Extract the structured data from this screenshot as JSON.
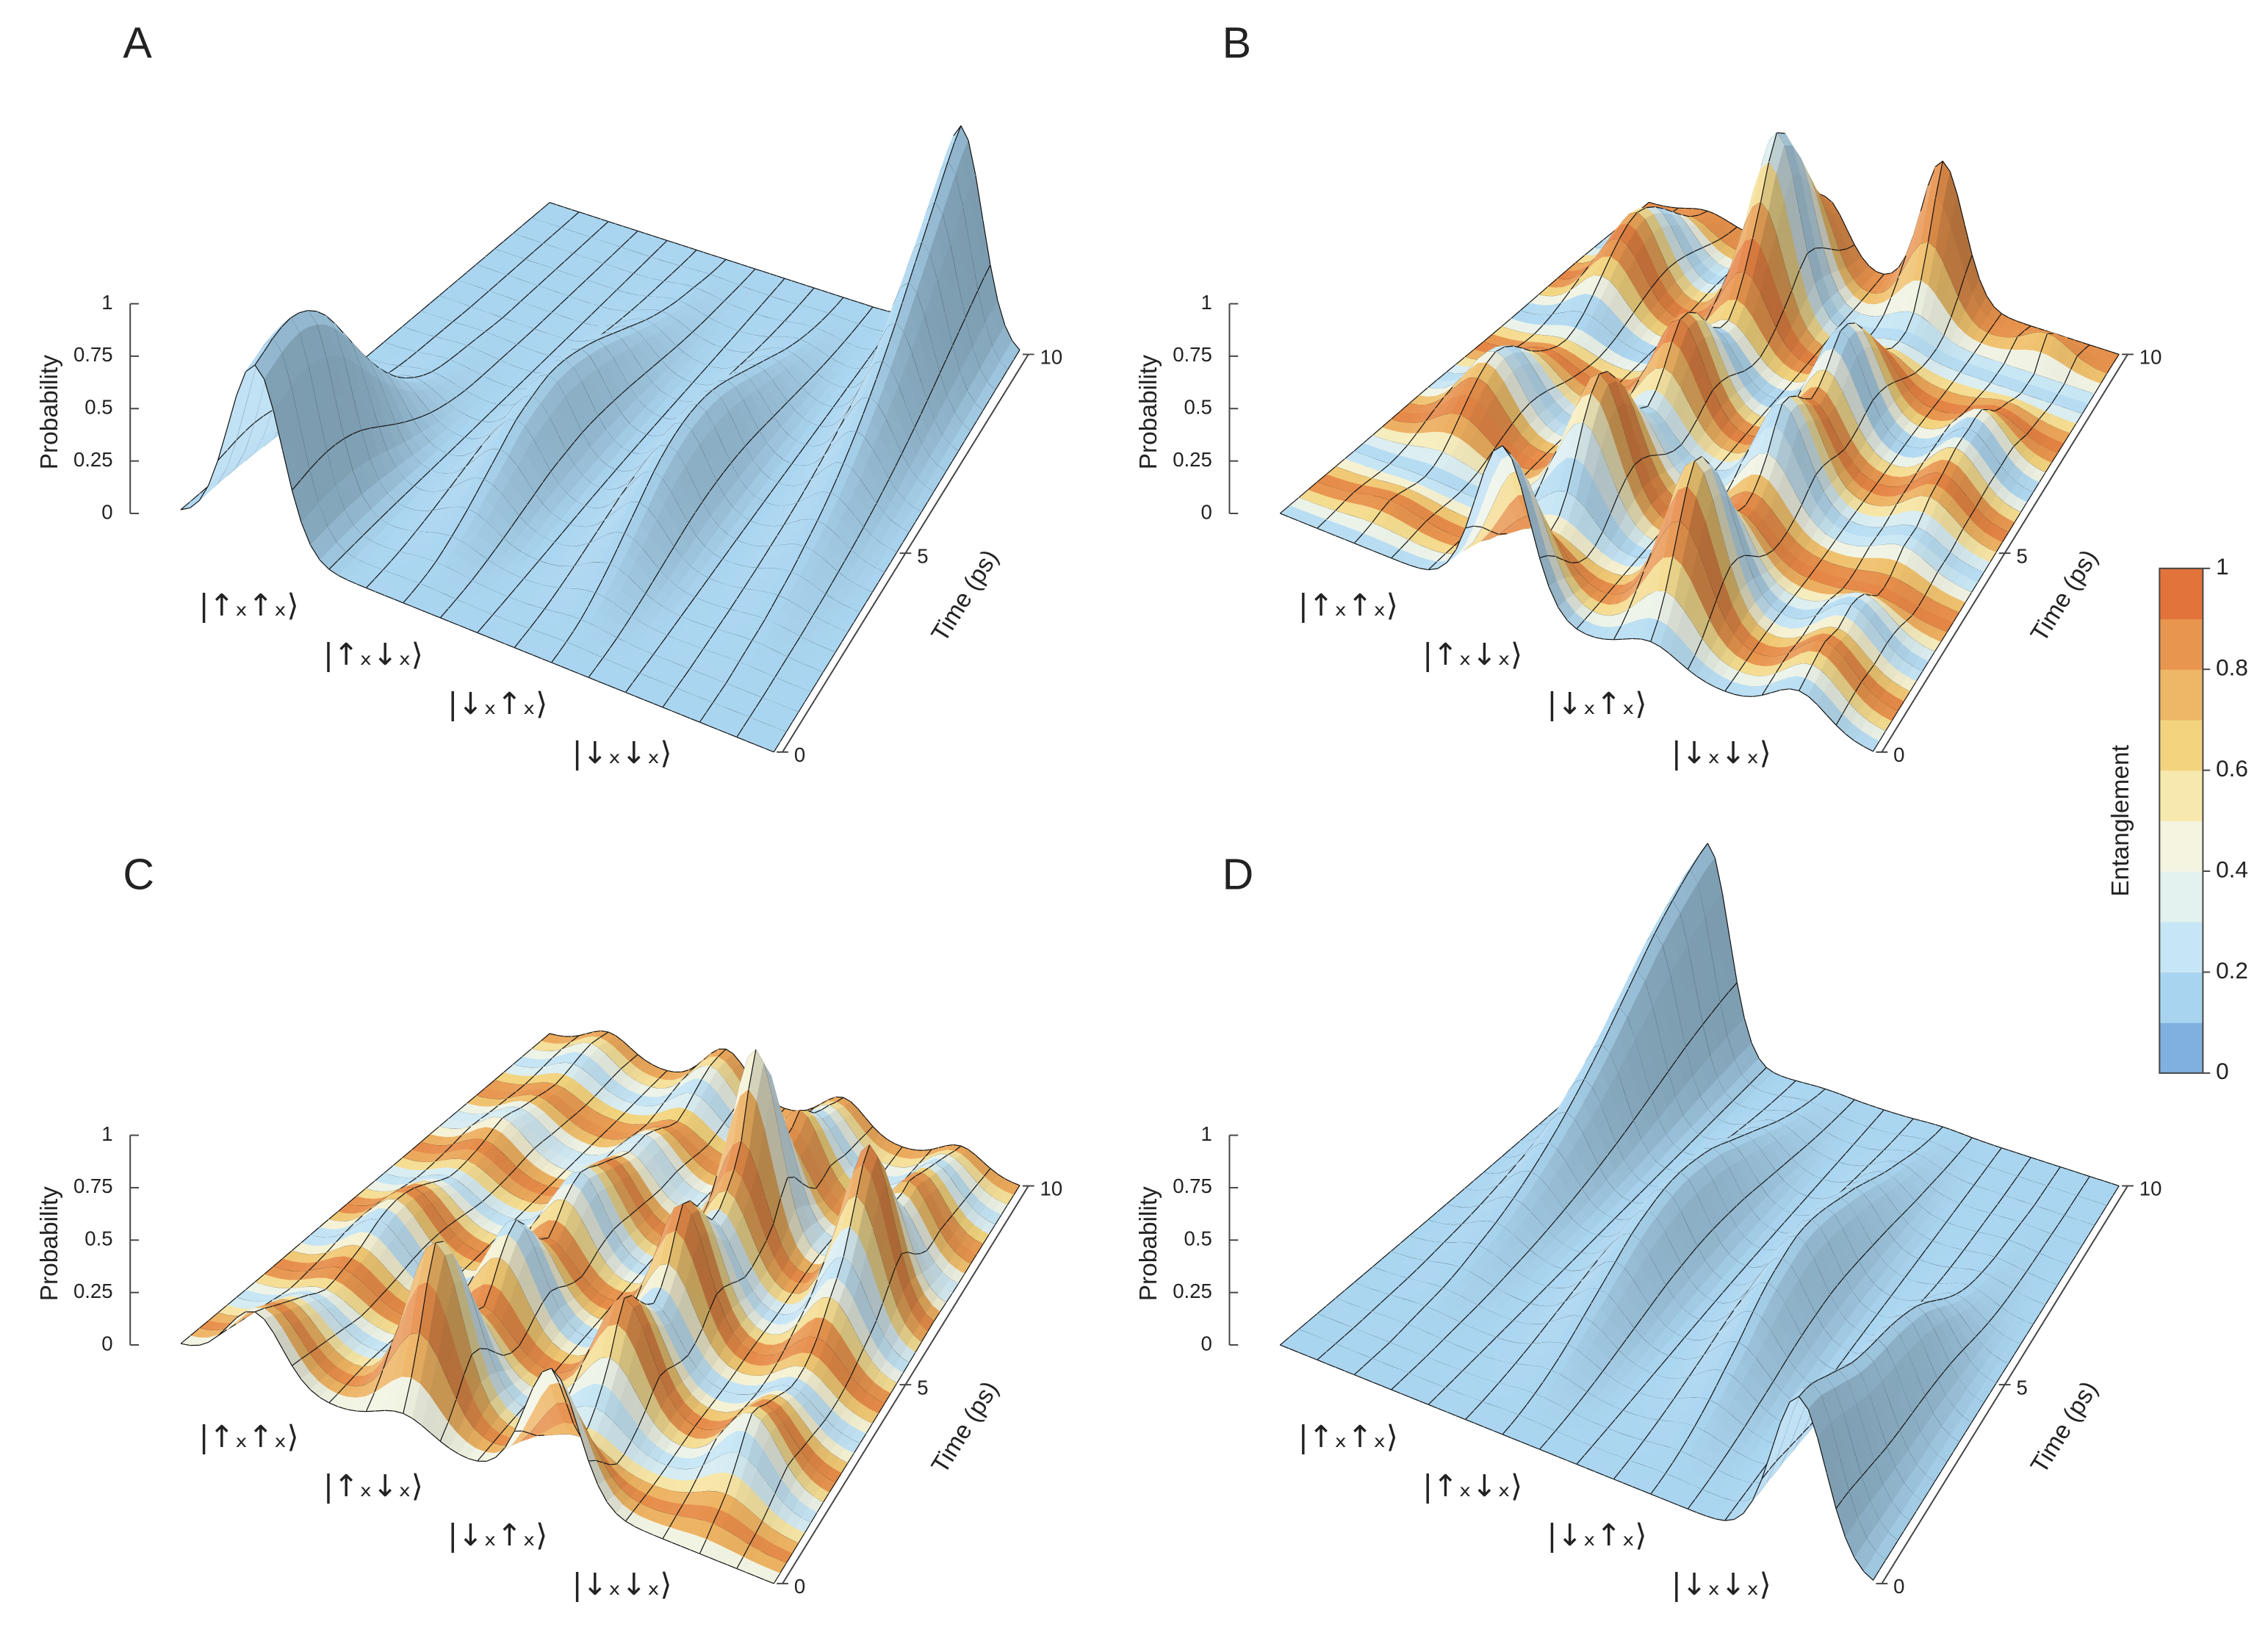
{
  "chart_data": [
    {
      "type": "surface3d",
      "panel": "A",
      "zlabel": "Probability",
      "ylabel": "Time (ps)",
      "categories": [
        "|↑ₓ↑ₓ⟩",
        "|↑ₓ↓ₓ⟩",
        "|↓ₓ↑ₓ⟩",
        "|↓ₓ↓ₓ⟩"
      ],
      "x": [
        0,
        0.5,
        1,
        1.5,
        2,
        2.5,
        3,
        3.5,
        4,
        4.5,
        5,
        5.5,
        6,
        6.5,
        7,
        7.5,
        8,
        8.5,
        9,
        9.5,
        10
      ],
      "z": [
        [
          0.85,
          0.9,
          0.92,
          0.88,
          0.78,
          0.62,
          0.45,
          0.3,
          0.18,
          0.1,
          0.05,
          0.03,
          0.02,
          0.01,
          0,
          0,
          0,
          0,
          0,
          0,
          0
        ],
        [
          0,
          0.01,
          0.03,
          0.07,
          0.12,
          0.18,
          0.24,
          0.3,
          0.33,
          0.35,
          0.34,
          0.31,
          0.27,
          0.22,
          0.17,
          0.12,
          0.08,
          0.05,
          0.03,
          0.01,
          0
        ],
        [
          0,
          0.01,
          0.03,
          0.07,
          0.12,
          0.18,
          0.24,
          0.3,
          0.34,
          0.36,
          0.36,
          0.34,
          0.3,
          0.25,
          0.2,
          0.15,
          0.1,
          0.06,
          0.03,
          0.01,
          0
        ],
        [
          0,
          0,
          0,
          0.01,
          0.02,
          0.03,
          0.05,
          0.07,
          0.1,
          0.13,
          0.17,
          0.22,
          0.28,
          0.35,
          0.43,
          0.52,
          0.62,
          0.72,
          0.82,
          0.92,
          1.0
        ]
      ],
      "entanglement": [
        0.12,
        0.12,
        0.12,
        0.12,
        0.12,
        0.12,
        0.12,
        0.12,
        0.12,
        0.12,
        0.12,
        0.12,
        0.12,
        0.12,
        0.12,
        0.12,
        0.12,
        0.12,
        0.12,
        0.12,
        0.12
      ],
      "zlim": [
        0,
        1
      ],
      "zticks": [
        0,
        0.25,
        0.5,
        0.75,
        1
      ],
      "ylim": [
        0,
        10
      ],
      "yticks": [
        0,
        5,
        10
      ]
    },
    {
      "type": "surface3d",
      "panel": "B",
      "zlabel": "Probability",
      "ylabel": "Time (ps)",
      "categories": [
        "|↑ₓ↑ₓ⟩",
        "|↑ₓ↓ₓ⟩",
        "|↓ₓ↑ₓ⟩",
        "|↓ₓ↓ₓ⟩"
      ],
      "x": [
        0,
        0.5,
        1,
        1.5,
        2,
        2.5,
        3,
        3.5,
        4,
        4.5,
        5,
        5.5,
        6,
        6.5,
        7,
        7.5,
        8,
        8.5,
        9,
        9.5,
        10
      ],
      "z": [
        [
          0,
          0.02,
          0.05,
          0.03,
          0.01,
          0.05,
          0.15,
          0.25,
          0.3,
          0.25,
          0.15,
          0.08,
          0.05,
          0.1,
          0.2,
          0.3,
          0.35,
          0.3,
          0.2,
          0.1,
          0.05
        ],
        [
          0.75,
          0.55,
          0.25,
          0.1,
          0.2,
          0.45,
          0.6,
          0.5,
          0.3,
          0.2,
          0.3,
          0.45,
          0.4,
          0.25,
          0.2,
          0.35,
          0.6,
          0.85,
          0.7,
          0.45,
          0.3
        ],
        [
          0.1,
          0.25,
          0.5,
          0.7,
          0.6,
          0.35,
          0.2,
          0.2,
          0.3,
          0.45,
          0.4,
          0.3,
          0.35,
          0.45,
          0.4,
          0.25,
          0.1,
          0.05,
          0.1,
          0.35,
          0.65
        ],
        [
          0.15,
          0.18,
          0.2,
          0.17,
          0.19,
          0.15,
          0.05,
          0.05,
          0.1,
          0.1,
          0.15,
          0.17,
          0.2,
          0.2,
          0.2,
          0.1,
          0.05,
          0,
          0,
          0.1,
          0
        ]
      ],
      "entanglement": [
        0.1,
        0.5,
        0.95,
        0.6,
        0.15,
        0.4,
        0.9,
        0.85,
        0.3,
        0.2,
        0.7,
        0.95,
        0.5,
        0.1,
        0.55,
        0.95,
        0.75,
        0.2,
        0.3,
        0.85,
        0.9
      ],
      "zlim": [
        0,
        1
      ],
      "zticks": [
        0,
        0.25,
        0.5,
        0.75,
        1
      ],
      "ylim": [
        0,
        10
      ],
      "yticks": [
        0,
        5,
        10
      ]
    },
    {
      "type": "surface3d",
      "panel": "C",
      "zlabel": "Probability",
      "ylabel": "Time (ps)",
      "categories": [
        "|↑ₓ↑ₓ⟩",
        "|↑ₓ↓ₓ⟩",
        "|↓ₓ↑ₓ⟩",
        "|↓ₓ↓ₓ⟩"
      ],
      "x": [
        0,
        0.5,
        1,
        1.5,
        2,
        2.5,
        3,
        3.5,
        4,
        4.5,
        5,
        5.5,
        6,
        6.5,
        7,
        7.5,
        8,
        8.5,
        9,
        9.5,
        10
      ],
      "z": [
        [
          0.3,
          0.25,
          0.2,
          0.15,
          0.1,
          0.12,
          0.15,
          0.2,
          0.22,
          0.2,
          0.15,
          0.1,
          0.1,
          0.12,
          0.15,
          0.12,
          0.1,
          0.08,
          0.1,
          0.12,
          0.1
        ],
        [
          0.1,
          0.4,
          0.75,
          0.6,
          0.3,
          0.2,
          0.35,
          0.45,
          0.3,
          0.2,
          0.3,
          0.35,
          0.3,
          0.25,
          0.2,
          0.2,
          0.15,
          0.1,
          0.15,
          0.2,
          0.2
        ],
        [
          0.6,
          0.35,
          0.1,
          0.15,
          0.3,
          0.5,
          0.4,
          0.3,
          0.4,
          0.6,
          0.5,
          0.35,
          0.4,
          0.55,
          0.9,
          0.6,
          0.3,
          0.35,
          0.25,
          0.2,
          0.15
        ],
        [
          0,
          0.05,
          0.1,
          0.2,
          0.3,
          0.25,
          0.2,
          0.15,
          0.15,
          0.2,
          0.3,
          0.4,
          0.6,
          0.75,
          0.5,
          0.3,
          0.3,
          0.25,
          0.2,
          0.15,
          0.1
        ]
      ],
      "entanglement": [
        0.3,
        0.9,
        0.7,
        0.2,
        0.5,
        0.95,
        0.6,
        0.15,
        0.6,
        0.95,
        0.5,
        0.2,
        0.75,
        0.9,
        0.35,
        0.3,
        0.85,
        0.8,
        0.2,
        0.5,
        0.9
      ],
      "zlim": [
        0,
        1
      ],
      "zticks": [
        0,
        0.25,
        0.5,
        0.75,
        1
      ],
      "ylim": [
        0,
        10
      ],
      "yticks": [
        0,
        5,
        10
      ]
    },
    {
      "type": "surface3d",
      "panel": "D",
      "zlabel": "Probability",
      "ylabel": "Time (ps)",
      "categories": [
        "|↑ₓ↑ₓ⟩",
        "|↑ₓ↓ₓ⟩",
        "|↓ₓ↑ₓ⟩",
        "|↓ₓ↓ₓ⟩"
      ],
      "x": [
        0,
        0.5,
        1,
        1.5,
        2,
        2.5,
        3,
        3.5,
        4,
        4.5,
        5,
        5.5,
        6,
        6.5,
        7,
        7.5,
        8,
        8.5,
        9,
        9.5,
        10
      ],
      "z": [
        [
          0,
          0,
          0,
          0.01,
          0.02,
          0.03,
          0.05,
          0.08,
          0.11,
          0.15,
          0.2,
          0.26,
          0.33,
          0.41,
          0.5,
          0.6,
          0.7,
          0.8,
          0.88,
          0.95,
          1.0
        ],
        [
          0,
          0.01,
          0.03,
          0.06,
          0.1,
          0.15,
          0.2,
          0.25,
          0.3,
          0.33,
          0.35,
          0.35,
          0.33,
          0.3,
          0.25,
          0.2,
          0.15,
          0.1,
          0.06,
          0.03,
          0.01
        ],
        [
          0,
          0.01,
          0.03,
          0.06,
          0.1,
          0.15,
          0.2,
          0.26,
          0.31,
          0.34,
          0.36,
          0.35,
          0.32,
          0.28,
          0.24,
          0.19,
          0.14,
          0.1,
          0.06,
          0.03,
          0.01
        ],
        [
          0.75,
          0.72,
          0.66,
          0.6,
          0.54,
          0.5,
          0.47,
          0.44,
          0.4,
          0.35,
          0.28,
          0.2,
          0.13,
          0.08,
          0.05,
          0.03,
          0.02,
          0.01,
          0,
          0,
          0
        ]
      ],
      "entanglement": [
        0.12,
        0.12,
        0.12,
        0.12,
        0.12,
        0.12,
        0.12,
        0.12,
        0.12,
        0.12,
        0.12,
        0.12,
        0.12,
        0.12,
        0.12,
        0.12,
        0.12,
        0.12,
        0.12,
        0.12,
        0.12
      ],
      "zlim": [
        0,
        1
      ],
      "zticks": [
        0,
        0.25,
        0.5,
        0.75,
        1
      ],
      "ylim": [
        0,
        10
      ],
      "yticks": [
        0,
        5,
        10
      ]
    }
  ],
  "colorbar": {
    "label": "Entanglement",
    "lim": [
      0,
      1
    ],
    "ticks": [
      0,
      0.2,
      0.4,
      0.6,
      0.8,
      1
    ],
    "colors": [
      "#7fb0de",
      "#a8d4f0",
      "#c7e6f5",
      "#e3f1ef",
      "#f4f4e0",
      "#f7e9ae",
      "#f3d47e",
      "#eeb765",
      "#e8964f",
      "#e2733a"
    ]
  }
}
